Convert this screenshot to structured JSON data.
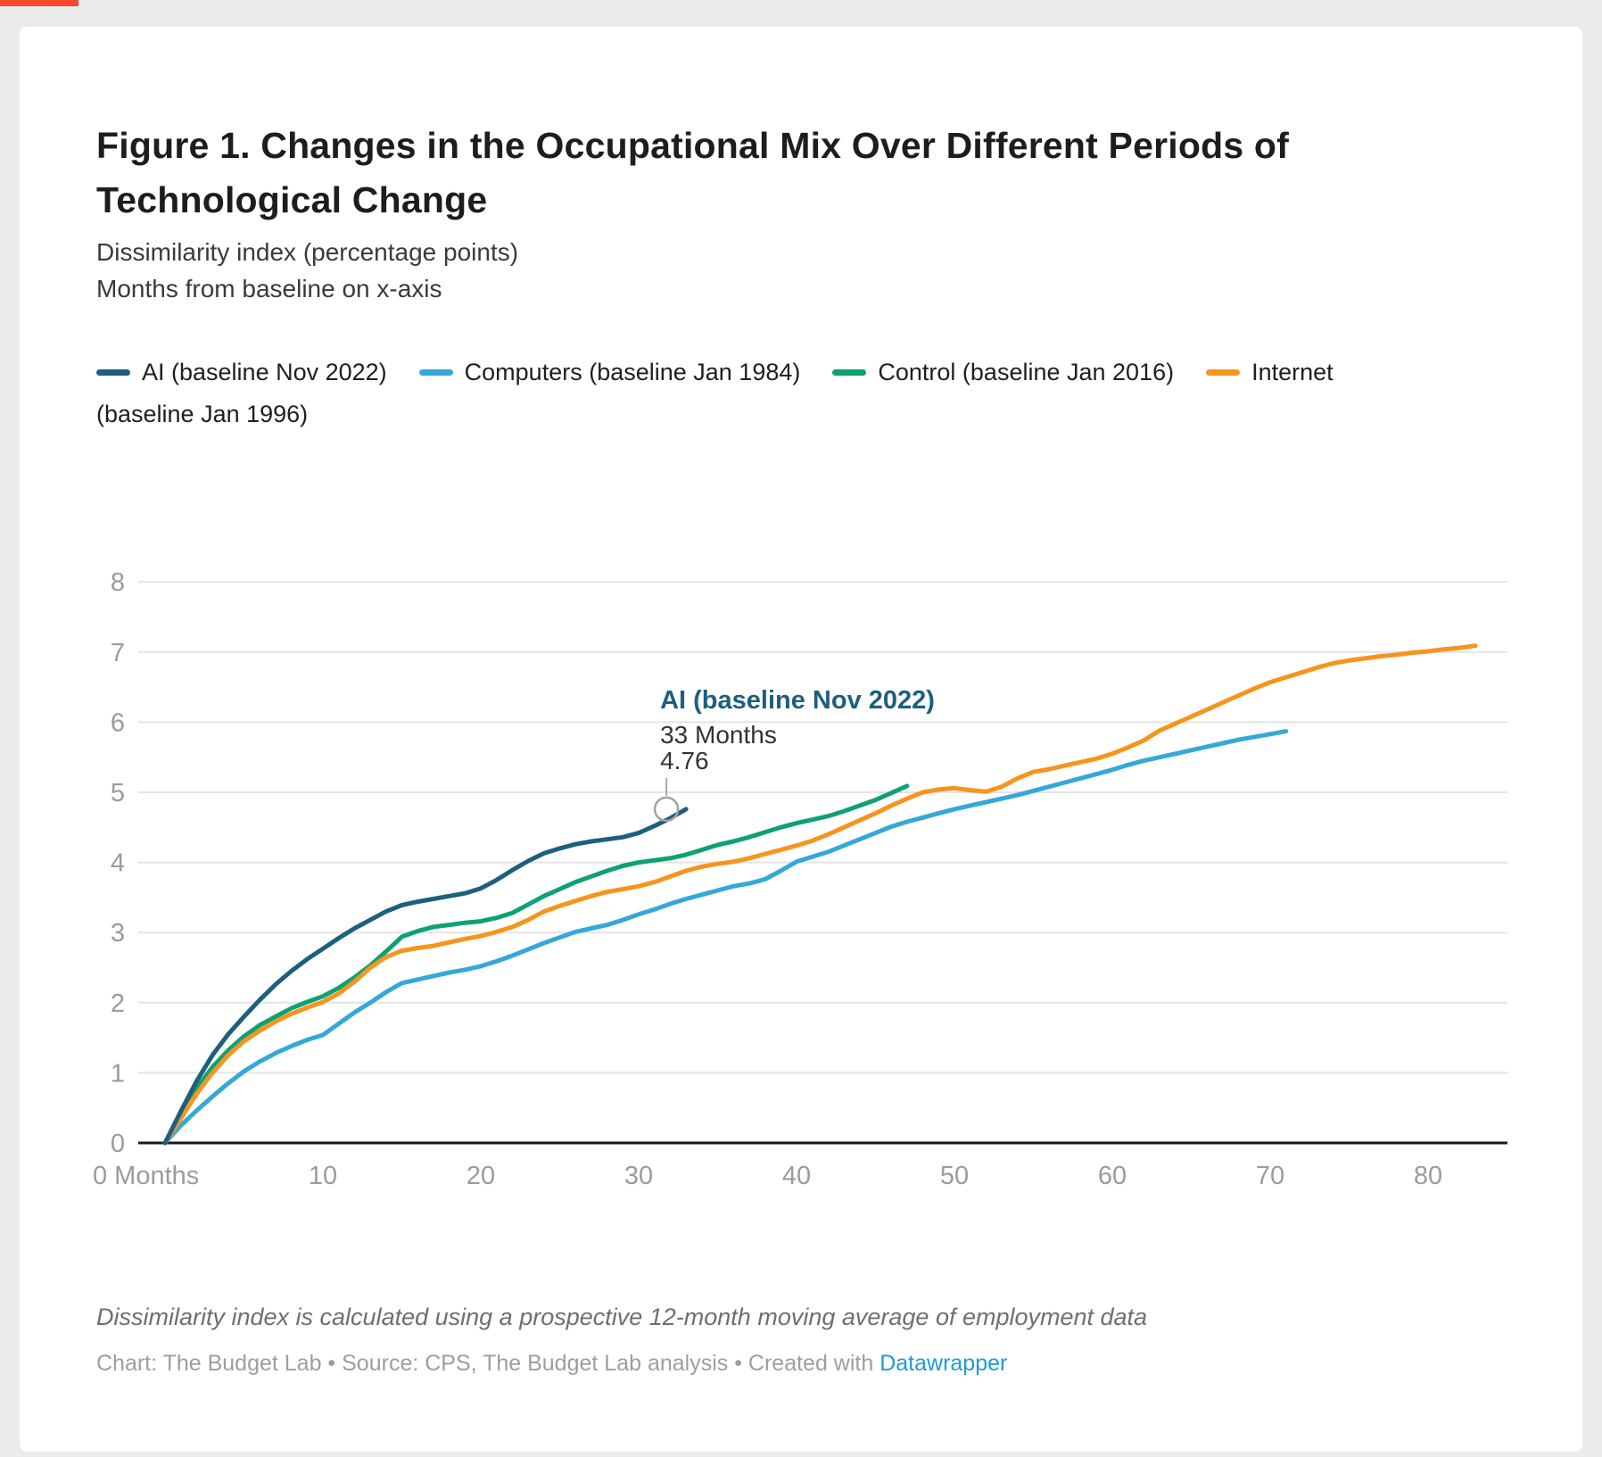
{
  "page": {
    "background": "#ebebeb",
    "card_background": "#ffffff",
    "top_bar_color": "#f9482e"
  },
  "header": {
    "title": "Figure 1. Changes in the Occupational Mix Over Different Periods of Technological Change",
    "subtitle_line1": "Dissimilarity index (percentage points)",
    "subtitle_line2": "Months from baseline on x-axis"
  },
  "legend": {
    "items": [
      {
        "label": "AI (baseline Nov 2022)",
        "color": "#1d5f7e"
      },
      {
        "label": "Computers (baseline Jan 1984)",
        "color": "#35a8d8"
      },
      {
        "label": "Control (baseline Jan 2016)",
        "color": "#0ea173"
      },
      {
        "label": "Internet",
        "color": "#f7941e"
      }
    ],
    "wrap_label": "(baseline Jan 1996)"
  },
  "chart_data": {
    "type": "line",
    "title": "Changes in the Occupational Mix Over Different Periods of Technological Change",
    "xlabel": "Months from baseline",
    "ylabel": "Dissimilarity index (percentage points)",
    "x_tick_labels": [
      "0 Months",
      "10",
      "20",
      "30",
      "40",
      "50",
      "60",
      "70",
      "80"
    ],
    "y_ticks": [
      0,
      1,
      2,
      3,
      4,
      5,
      6,
      7,
      8
    ],
    "xlim": [
      0,
      85
    ],
    "ylim": [
      0,
      8.5
    ],
    "grid": "horizontal",
    "legend_position": "top",
    "colors": {
      "axis": "#1a1a1a",
      "gridline": "#e4e4e4",
      "tick_label": "#9b9b9b",
      "annotation_connector": "#aaaaaa"
    },
    "series": [
      {
        "name": "Computers (baseline Jan 1984)",
        "color": "#35a8d8",
        "x_start_month": 0,
        "values": [
          0,
          0.25,
          0.46,
          0.66,
          0.85,
          1.02,
          1.16,
          1.28,
          1.38,
          1.47,
          1.54,
          1.7,
          1.86,
          2,
          2.15,
          2.28,
          2.33,
          2.38,
          2.43,
          2.47,
          2.52,
          2.59,
          2.67,
          2.76,
          2.85,
          2.93,
          3.01,
          3.06,
          3.11,
          3.18,
          3.26,
          3.33,
          3.41,
          3.48,
          3.54,
          3.6,
          3.66,
          3.7,
          3.76,
          3.88,
          4.01,
          4.08,
          4.15,
          4.24,
          4.33,
          4.42,
          4.51,
          4.58,
          4.64,
          4.7,
          4.76,
          4.81,
          4.86,
          4.91,
          4.96,
          5.02,
          5.08,
          5.14,
          5.2,
          5.26,
          5.32,
          5.39,
          5.45,
          5.5,
          5.55,
          5.6,
          5.65,
          5.7,
          5.75,
          5.79,
          5.83,
          5.87
        ]
      },
      {
        "name": "Control (baseline Jan 2016)",
        "color": "#0ea173",
        "x_start_month": 0,
        "values": [
          0,
          0.4,
          0.78,
          1.08,
          1.32,
          1.52,
          1.68,
          1.8,
          1.92,
          2.01,
          2.09,
          2.21,
          2.36,
          2.53,
          2.73,
          2.94,
          3.02,
          3.08,
          3.11,
          3.14,
          3.16,
          3.21,
          3.28,
          3.4,
          3.52,
          3.62,
          3.72,
          3.8,
          3.88,
          3.95,
          4,
          4.03,
          4.06,
          4.11,
          4.18,
          4.25,
          4.3,
          4.36,
          4.43,
          4.5,
          4.56,
          4.61,
          4.66,
          4.73,
          4.81,
          4.89,
          4.99,
          5.09
        ]
      },
      {
        "name": "Internet (baseline Jan 1996)",
        "color": "#f7941e",
        "x_start_month": 0,
        "values": [
          0,
          0.35,
          0.7,
          1,
          1.25,
          1.45,
          1.6,
          1.73,
          1.84,
          1.93,
          2.01,
          2.13,
          2.3,
          2.5,
          2.65,
          2.74,
          2.78,
          2.81,
          2.86,
          2.91,
          2.95,
          3.01,
          3.08,
          3.18,
          3.3,
          3.38,
          3.45,
          3.52,
          3.58,
          3.62,
          3.66,
          3.72,
          3.8,
          3.88,
          3.94,
          3.98,
          4.01,
          4.06,
          4.12,
          4.18,
          4.24,
          4.31,
          4.4,
          4.5,
          4.6,
          4.7,
          4.81,
          4.91,
          5,
          5.04,
          5.06,
          5.03,
          5.01,
          5.08,
          5.2,
          5.29,
          5.33,
          5.38,
          5.43,
          5.48,
          5.55,
          5.64,
          5.74,
          5.88,
          5.98,
          6.08,
          6.18,
          6.28,
          6.38,
          6.48,
          6.57,
          6.64,
          6.71,
          6.78,
          6.84,
          6.88,
          6.91,
          6.94,
          6.96,
          6.99,
          7.01,
          7.04,
          7.06,
          7.09
        ]
      },
      {
        "name": "AI (baseline Nov 2022)",
        "color": "#1d5f7e",
        "x_start_month": 0,
        "values": [
          0,
          0.45,
          0.88,
          1.25,
          1.55,
          1.8,
          2.04,
          2.26,
          2.45,
          2.62,
          2.77,
          2.92,
          3.06,
          3.18,
          3.3,
          3.39,
          3.44,
          3.48,
          3.52,
          3.56,
          3.63,
          3.75,
          3.89,
          4.02,
          4.13,
          4.2,
          4.26,
          4.3,
          4.33,
          4.36,
          4.42,
          4.52,
          4.63,
          4.76
        ]
      }
    ],
    "annotation": {
      "title": "AI (baseline Nov 2022)",
      "title_color": "#1d5f7e",
      "line1": "33 Months",
      "line2": "4.76",
      "month": 33,
      "value": 4.76
    }
  },
  "footer": {
    "note": "Dissimilarity index is calculated using a prospective 12-month moving average of employment data",
    "byline_prefix": "Chart: The Budget Lab • Source: CPS, The Budget Lab analysis • Created with ",
    "byline_link": "Datawrapper",
    "link_color": "#1f9ad7"
  }
}
